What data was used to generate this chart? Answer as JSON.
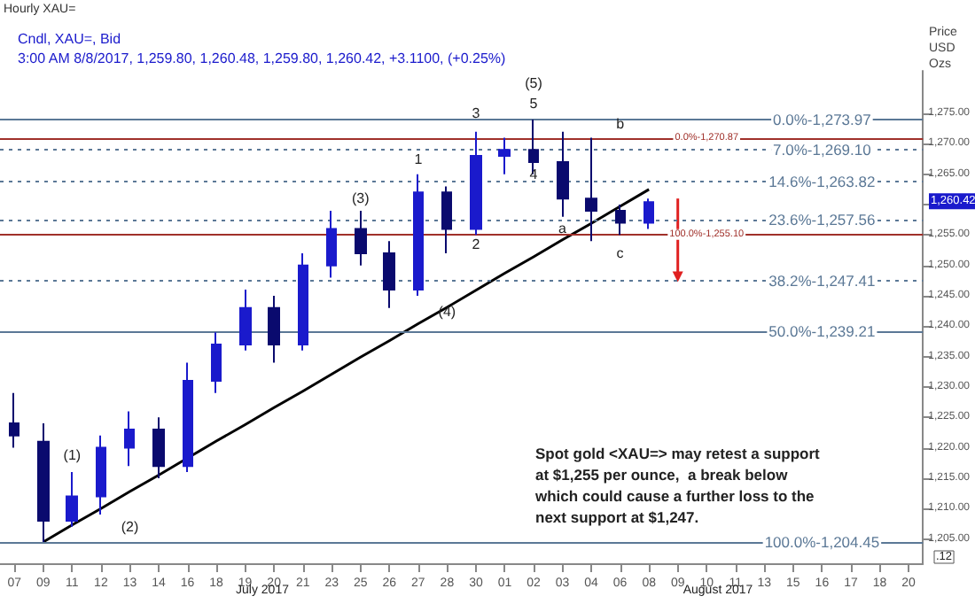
{
  "chart_data": {
    "type": "candlestick",
    "title": "Hourly XAU=",
    "subtitle": "Cndl, XAU=, Bid",
    "ylabel": "Price USD Ozs",
    "categories": [
      "07",
      "09",
      "11",
      "12",
      "13",
      "14",
      "16",
      "18",
      "19",
      "20",
      "21",
      "23",
      "25",
      "26",
      "27",
      "28",
      "30",
      "01",
      "02",
      "03",
      "04",
      "06",
      "08",
      "09",
      "10",
      "11",
      "13",
      "15",
      "16",
      "17",
      "18",
      "20"
    ],
    "ohlc": [
      [
        1224,
        1229,
        1220,
        1222
      ],
      [
        1221,
        1224,
        1204.5,
        1208
      ],
      [
        1208,
        1216,
        1207,
        1212
      ],
      [
        1212,
        1222,
        1209,
        1220
      ],
      [
        1220,
        1226,
        1217,
        1223
      ],
      [
        1223,
        1225,
        1215,
        1217
      ],
      [
        1217,
        1234,
        1216,
        1231
      ],
      [
        1231,
        1239,
        1229,
        1237
      ],
      [
        1237,
        1246,
        1236,
        1243
      ],
      [
        1243,
        1245,
        1234,
        1237
      ],
      [
        1237,
        1252,
        1236,
        1250
      ],
      [
        1250,
        1259,
        1248,
        1256
      ],
      [
        1256,
        1259,
        1250,
        1252
      ],
      [
        1252,
        1254,
        1243,
        1246
      ],
      [
        1246,
        1265,
        1245,
        1262
      ],
      [
        1262,
        1263,
        1252,
        1256
      ],
      [
        1256,
        1272,
        1255,
        1268
      ],
      [
        1268,
        1271,
        1265,
        1269
      ],
      [
        1269,
        1274,
        1265,
        1267
      ],
      [
        1267,
        1272,
        1258,
        1261
      ],
      [
        1261,
        1271,
        1254,
        1259
      ],
      [
        1259,
        1260,
        1255,
        1257
      ],
      [
        1257,
        1261,
        1256,
        1260.42
      ],
      null,
      null,
      null,
      null,
      null,
      null,
      null,
      null,
      null
    ],
    "colors": [
      "#0a0a6e",
      "#0a0a6e",
      "#1a1acc",
      "#1a1acc",
      "#1a1acc",
      "#0a0a6e",
      "#1a1acc",
      "#1a1acc",
      "#1a1acc",
      "#0a0a6e",
      "#1a1acc",
      "#1a1acc",
      "#0a0a6e",
      "#0a0a6e",
      "#1a1acc",
      "#0a0a6e",
      "#1a1acc",
      "#1a1acc",
      "#0a0a6e",
      "#0a0a6e",
      "#0a0a6e",
      "#0a0a6e",
      "#1a1acc",
      null,
      null,
      null,
      null,
      null,
      null,
      null,
      null,
      null
    ],
    "series": [
      {
        "type": "line",
        "color": "#000000",
        "values": [
          null,
          1204.5,
          1207.3,
          1210,
          1212.8,
          1215.5,
          1218.3,
          1221.1,
          1223.8,
          1226.6,
          1229.3,
          1232.1,
          1234.9,
          1237.6,
          1240.4,
          1243.1,
          1245.9,
          1248.7,
          1251.4,
          1254.2,
          1256.9,
          1259.7,
          1262.5,
          null,
          null,
          null,
          null,
          null,
          null,
          null,
          null,
          null
        ]
      }
    ],
    "ylim": [
      1201,
      1282
    ],
    "yticks": [
      {
        "value": 1205,
        "label": "1,205.00"
      },
      {
        "value": 1210,
        "label": "1,210.00"
      },
      {
        "value": 1215,
        "label": "1,215.00"
      },
      {
        "value": 1220,
        "label": "1,220.00"
      },
      {
        "value": 1225,
        "label": "1,225.00"
      },
      {
        "value": 1230,
        "label": "1,230.00"
      },
      {
        "value": 1235,
        "label": "1,235.00"
      },
      {
        "value": 1240,
        "label": "1,240.00"
      },
      {
        "value": 1245,
        "label": "1,245.00"
      },
      {
        "value": 1250,
        "label": "1,250.00"
      },
      {
        "value": 1255,
        "label": "1,255.00"
      },
      {
        "value": 1260,
        "label": null
      },
      {
        "value": 1265,
        "label": "1,265.00"
      },
      {
        "value": 1270,
        "label": "1,270.00"
      },
      {
        "value": 1275,
        "label": "1,275.00"
      }
    ],
    "ref_lines": [
      {
        "axis": "y",
        "value": 1273.97,
        "label": "1,273.97",
        "color": "#5b7896",
        "line_style": "solid"
      },
      {
        "axis": "y",
        "value": 1269.1,
        "label": "1,269.10",
        "color": "#5b7896",
        "line_style": "dotted"
      },
      {
        "axis": "y",
        "value": 1263.82,
        "label": "1,263.82",
        "color": "#5b7896",
        "line_style": "dotted"
      },
      {
        "axis": "y",
        "value": 1257.56,
        "label": "1,257.56",
        "color": "#5b7896",
        "line_style": "dotted"
      },
      {
        "axis": "y",
        "value": 1247.41,
        "label": "1,247.41",
        "color": "#5b7896",
        "line_style": "dotted"
      },
      {
        "axis": "y",
        "value": 1239.21,
        "label": "1,239.21",
        "color": "#5b7896",
        "line_style": "solid"
      },
      {
        "axis": "y",
        "value": 1204.45,
        "label": "1,204.45",
        "color": "#5b7896",
        "line_style": "solid"
      },
      {
        "axis": "y",
        "value": 1270.87,
        "label": "1,270.87",
        "color": "#a0302a",
        "line_style": "solid"
      },
      {
        "axis": "y",
        "value": 1255.1,
        "label": "1,255.10",
        "color": "#a0302a",
        "line_style": "solid"
      }
    ],
    "annotations": [
      "3:00 AM 8/8/2017, 1,259.80, 1,260.48, 1,259.80, 1,260.42, +3.1100, (+0.25%)",
      "Spot gold <XAU=> may retest a support at $1,255 per ounce,  a break below which could cause a further loss to the next support at $1,247.",
      "July 2017",
      "August 2017",
      "1,260.42",
      ".12",
      "(1)",
      "(2)",
      "(3)",
      "(4)",
      "(5)",
      "1",
      "2",
      "3",
      "4",
      "5",
      "a",
      "b",
      "c",
      "0.0%-",
      "7.0%-",
      "14.6%-",
      "23.6%-",
      "38.2%-",
      "50.0%-",
      "100.0%-",
      "0.0%-",
      "100.0%-"
    ],
    "grid": false
  }
}
